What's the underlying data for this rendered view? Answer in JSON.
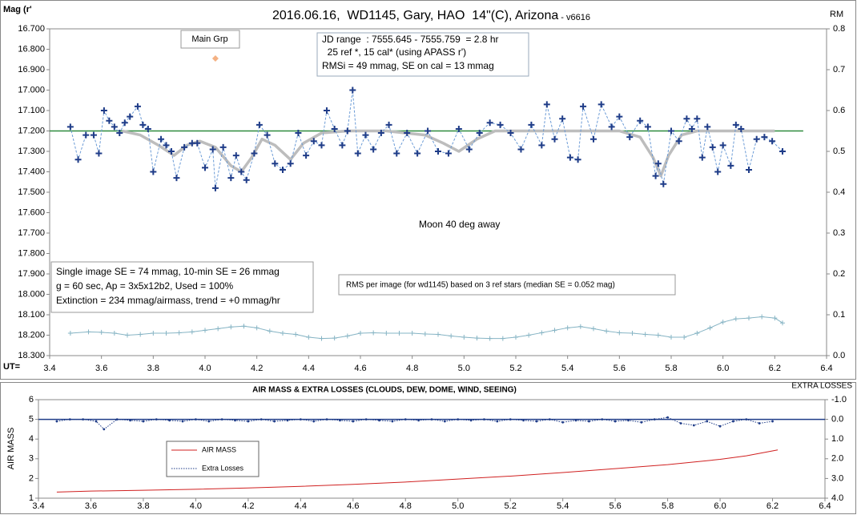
{
  "chart_data": [
    {
      "type": "line",
      "title": "2016.06.16,  WD1145, Gary, HAO  14\"(C), Arizona",
      "subtitle": " - v6616",
      "ylabel": "Mag (r'",
      "y2label": "RM",
      "xlabel": "UT=",
      "xlim": [
        3.4,
        6.4
      ],
      "xticks": [
        3.4,
        3.6,
        3.8,
        {
          "value": 4.0,
          "label": "4.0"
        },
        4.2,
        4.4,
        4.6,
        4.8,
        {
          "value": 5.0,
          "label": "5.0"
        },
        5.2,
        5.4,
        5.6,
        5.8,
        {
          "value": 6.0,
          "label": "6.0"
        },
        6.2,
        6.4
      ],
      "ylim": [
        18.3,
        16.7
      ],
      "yticks": [
        {
          "value": 16.7,
          "label": "16.700"
        },
        {
          "value": 16.8,
          "label": "16.800"
        },
        {
          "value": 16.9,
          "label": "16.900"
        },
        {
          "value": 17.0,
          "label": "17.000"
        },
        {
          "value": 17.1,
          "label": "17.100"
        },
        {
          "value": 17.2,
          "label": "17.200"
        },
        {
          "value": 17.3,
          "label": "17.300"
        },
        {
          "value": 17.4,
          "label": "17.400"
        },
        {
          "value": 17.5,
          "label": "17.500"
        },
        {
          "value": 17.6,
          "label": "17.600"
        },
        {
          "value": 17.7,
          "label": "17.700"
        },
        {
          "value": 17.8,
          "label": "17.800"
        },
        {
          "value": 17.9,
          "label": "17.900"
        },
        {
          "value": 18.0,
          "label": "18.000"
        },
        {
          "value": 18.1,
          "label": "18.100"
        },
        {
          "value": 18.2,
          "label": "18.200"
        },
        {
          "value": 18.3,
          "label": "18.300"
        }
      ],
      "y2lim": [
        0,
        0.8
      ],
      "y2ticks": [
        {
          "value": 0,
          "label": "0.0"
        },
        0.1,
        0.2,
        0.3,
        0.4,
        0.5,
        0.6,
        0.7,
        0.8
      ],
      "grid": false,
      "reference_line": {
        "value": 17.2,
        "color": "#2e8b3e"
      },
      "series": [
        {
          "color": "#bdbdbd",
          "line": "thick",
          "marker": "none",
          "x": [
            3.68,
            3.75,
            3.82,
            3.88,
            3.93,
            3.98,
            4.04,
            4.1,
            4.14,
            4.18,
            4.22,
            4.27,
            4.33,
            4.38,
            4.45,
            4.55,
            4.7,
            4.85,
            4.92,
            4.98,
            5.05,
            5.12,
            5.4,
            5.6,
            5.68,
            5.73,
            5.76,
            5.79,
            5.84,
            5.9,
            6.2
          ],
          "values": [
            17.2,
            17.22,
            17.27,
            17.32,
            17.27,
            17.25,
            17.28,
            17.37,
            17.4,
            17.33,
            17.24,
            17.27,
            17.34,
            17.26,
            17.21,
            17.2,
            17.2,
            17.22,
            17.26,
            17.3,
            17.24,
            17.2,
            17.2,
            17.2,
            17.23,
            17.33,
            17.42,
            17.32,
            17.22,
            17.2,
            17.2
          ]
        },
        {
          "color": "#1f3c88",
          "linecolor": "#6b9bd6",
          "line": "dashed",
          "marker": "plus",
          "x": [
            3.48,
            3.51,
            3.54,
            3.57,
            3.59,
            3.61,
            3.63,
            3.65,
            3.67,
            3.69,
            3.71,
            3.74,
            3.76,
            3.78,
            3.8,
            3.83,
            3.85,
            3.87,
            3.89,
            3.92,
            3.95,
            3.97,
            4.0,
            4.03,
            4.04,
            4.07,
            4.1,
            4.12,
            4.14,
            4.16,
            4.19,
            4.21,
            4.24,
            4.27,
            4.3,
            4.33,
            4.36,
            4.39,
            4.42,
            4.45,
            4.47,
            4.5,
            4.53,
            4.55,
            4.57,
            4.59,
            4.62,
            4.65,
            4.68,
            4.71,
            4.74,
            4.78,
            4.82,
            4.86,
            4.9,
            4.94,
            4.98,
            5.02,
            5.06,
            5.1,
            5.14,
            5.18,
            5.22,
            5.26,
            5.3,
            5.32,
            5.35,
            5.38,
            5.41,
            5.44,
            5.46,
            5.5,
            5.53,
            5.57,
            5.6,
            5.64,
            5.68,
            5.71,
            5.74,
            5.75,
            5.77,
            5.8,
            5.83,
            5.86,
            5.88,
            5.9,
            5.92,
            5.94,
            5.96,
            5.98,
            6.0,
            6.03,
            6.05,
            6.07,
            6.1,
            6.13,
            6.16,
            6.19,
            6.23
          ],
          "values": [
            17.18,
            17.34,
            17.22,
            17.22,
            17.31,
            17.1,
            17.15,
            17.18,
            17.21,
            17.16,
            17.13,
            17.08,
            17.17,
            17.19,
            17.4,
            17.24,
            17.27,
            17.3,
            17.43,
            17.28,
            17.26,
            17.26,
            17.38,
            17.29,
            17.48,
            17.28,
            17.43,
            17.32,
            17.4,
            17.44,
            17.31,
            17.17,
            17.22,
            17.36,
            17.39,
            17.36,
            17.21,
            17.32,
            17.25,
            17.27,
            17.1,
            17.19,
            17.27,
            17.2,
            17.0,
            17.31,
            17.22,
            17.29,
            17.21,
            17.17,
            17.31,
            17.21,
            17.31,
            17.2,
            17.3,
            17.31,
            17.19,
            17.29,
            17.21,
            17.16,
            17.17,
            17.21,
            17.29,
            17.17,
            17.27,
            17.07,
            17.24,
            17.14,
            17.33,
            17.34,
            17.08,
            17.24,
            17.07,
            17.18,
            17.13,
            17.23,
            17.15,
            17.18,
            17.42,
            17.36,
            17.46,
            17.2,
            17.25,
            17.14,
            17.19,
            17.14,
            17.33,
            17.18,
            17.28,
            17.4,
            17.27,
            17.37,
            17.17,
            17.19,
            17.39,
            17.24,
            17.23,
            17.25,
            17.3
          ]
        },
        {
          "name": "Main Grp",
          "color": "#f4b183",
          "line": "none",
          "marker": "diamond",
          "x": [
            4.04
          ],
          "values": [
            16.845
          ]
        },
        {
          "color": "#86b4c4",
          "line": "solid",
          "marker": "plus",
          "axis": "y2",
          "x": [
            3.48,
            3.55,
            3.6,
            3.65,
            3.7,
            3.75,
            3.8,
            3.85,
            3.9,
            3.95,
            4.0,
            4.05,
            4.1,
            4.15,
            4.2,
            4.25,
            4.3,
            4.35,
            4.4,
            4.45,
            4.5,
            4.55,
            4.6,
            4.65,
            4.7,
            4.75,
            4.8,
            4.85,
            4.9,
            4.95,
            5.0,
            5.05,
            5.1,
            5.15,
            5.2,
            5.25,
            5.3,
            5.35,
            5.4,
            5.45,
            5.5,
            5.55,
            5.6,
            5.65,
            5.7,
            5.75,
            5.8,
            5.85,
            5.9,
            5.95,
            6.0,
            6.05,
            6.1,
            6.15,
            6.2,
            6.23
          ],
          "values": [
            0.055,
            0.058,
            0.057,
            0.055,
            0.05,
            0.052,
            0.055,
            0.055,
            0.056,
            0.058,
            0.062,
            0.066,
            0.07,
            0.072,
            0.068,
            0.06,
            0.055,
            0.052,
            0.045,
            0.042,
            0.043,
            0.048,
            0.055,
            0.056,
            0.055,
            0.055,
            0.055,
            0.053,
            0.052,
            0.048,
            0.045,
            0.043,
            0.042,
            0.042,
            0.045,
            0.05,
            0.056,
            0.062,
            0.068,
            0.071,
            0.066,
            0.06,
            0.056,
            0.055,
            0.052,
            0.05,
            0.045,
            0.045,
            0.055,
            0.068,
            0.082,
            0.09,
            0.092,
            0.095,
            0.092,
            0.08
          ]
        }
      ],
      "annotations": [
        "JD range  : 7555.645 - 7555.759  = 2.8 hr",
        "  25 ref *, 15 cal* (using APASS r')",
        "RMSi = 49 mmag, SE on cal = 13 mmag",
        "Moon 40 deg away",
        "Single image SE = 74 mmag, 10-min SE = 26 mmag",
        "g = 60 sec, Ap = 3x5x12b2, Used = 100%",
        "Extinction = 234 mmag/airmass, trend = +0 mmag/hr",
        "RMS per image (for wd1145) based on 3 ref stars (median SE = 0.052 mag)"
      ]
    },
    {
      "type": "line",
      "title": "AIR MASS & EXTRA LOSSES (CLOUDS, DEW, DOME, WIND, SEEING)",
      "ylabel": "AIR MASS",
      "y2label": "EXTRA LOSSES",
      "xlim": [
        3.4,
        6.4
      ],
      "xticks": [
        3.4,
        3.6,
        3.8,
        {
          "value": 4.0,
          "label": "4.0"
        },
        4.2,
        4.4,
        4.6,
        4.8,
        {
          "value": 5.0,
          "label": "5.0"
        },
        5.2,
        5.4,
        5.6,
        5.8,
        {
          "value": 6.0,
          "label": "6.0"
        },
        6.2,
        6.4
      ],
      "ylim": [
        1,
        6
      ],
      "yticks": [
        1,
        2,
        3,
        4,
        5,
        6
      ],
      "y2lim": [
        4,
        -1
      ],
      "y2ticks": [
        {
          "value": -1,
          "label": "-1.0"
        },
        {
          "value": 0,
          "label": "0.0"
        },
        {
          "value": 1,
          "label": "1.0"
        },
        {
          "value": 2,
          "label": "2.0"
        },
        {
          "value": 3,
          "label": "3.0"
        },
        {
          "value": 4,
          "label": "4.0"
        }
      ],
      "grid": false,
      "reference_line": {
        "value": 0,
        "axis": "y2",
        "color": "#1f3c88"
      },
      "series": [
        {
          "name": "AIR MASS",
          "color": "#d02020",
          "line": "solid",
          "marker": "none",
          "x": [
            3.47,
            3.6,
            3.8,
            4.0,
            4.2,
            4.4,
            4.6,
            4.8,
            5.0,
            5.2,
            5.4,
            5.6,
            5.8,
            6.0,
            6.1,
            6.22
          ],
          "values": [
            1.31,
            1.36,
            1.4,
            1.45,
            1.52,
            1.6,
            1.7,
            1.82,
            1.97,
            2.12,
            2.3,
            2.5,
            2.7,
            2.97,
            3.15,
            3.45
          ]
        },
        {
          "name": "Extra Losses",
          "color": "#1f3c88",
          "line": "dotted",
          "marker": "dot",
          "axis": "y2",
          "x": [
            3.47,
            3.52,
            3.57,
            3.62,
            3.65,
            3.7,
            3.75,
            3.8,
            3.85,
            3.9,
            3.95,
            4.0,
            4.05,
            4.1,
            4.15,
            4.2,
            4.25,
            4.3,
            4.35,
            4.4,
            4.45,
            4.5,
            4.55,
            4.6,
            4.65,
            4.7,
            4.75,
            4.8,
            4.85,
            4.9,
            4.95,
            5.0,
            5.05,
            5.1,
            5.15,
            5.2,
            5.25,
            5.3,
            5.35,
            5.4,
            5.45,
            5.5,
            5.55,
            5.6,
            5.65,
            5.7,
            5.75,
            5.8,
            5.85,
            5.9,
            5.95,
            6.0,
            6.05,
            6.1,
            6.15,
            6.2
          ],
          "values": [
            0.1,
            0.0,
            0.0,
            0.1,
            0.5,
            0.0,
            0.05,
            0.1,
            0.0,
            0.05,
            0.1,
            0.0,
            0.1,
            0.0,
            0.05,
            0.1,
            0.0,
            0.1,
            0.05,
            0.0,
            0.1,
            0.0,
            0.05,
            0.1,
            0.0,
            0.05,
            0.1,
            0.0,
            0.05,
            0.0,
            0.1,
            0.0,
            0.05,
            0.0,
            0.1,
            0.0,
            0.05,
            0.1,
            0.0,
            0.15,
            0.05,
            0.1,
            0.0,
            0.1,
            0.05,
            0.15,
            0.0,
            -0.1,
            0.2,
            0.3,
            0.1,
            0.35,
            0.1,
            0.0,
            0.2,
            0.1
          ]
        }
      ]
    }
  ]
}
